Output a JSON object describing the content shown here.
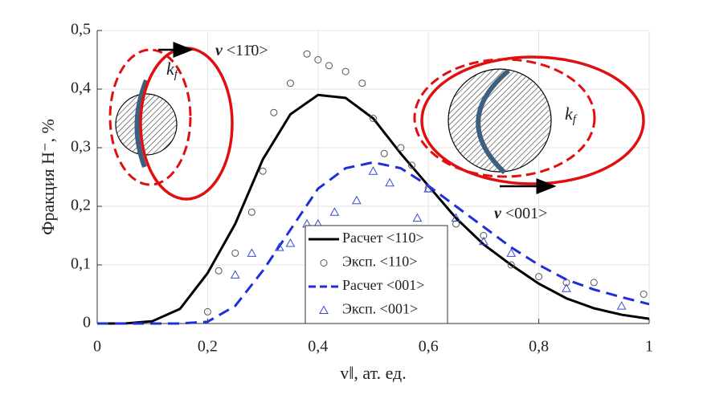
{
  "chart_data": {
    "type": "line",
    "xlabel": "v‖, ат. ед.",
    "ylabel": "Фракция H⁻, %",
    "xlim": [
      0,
      1
    ],
    "ylim": [
      0,
      0.5
    ],
    "xticks": [
      0,
      {
        "value": 0.2,
        "label": "0,2"
      },
      {
        "value": 0.4,
        "label": "0,4"
      },
      {
        "value": 0.6,
        "label": "0,6"
      },
      {
        "value": 0.8,
        "label": "0,8"
      },
      1
    ],
    "yticks": [
      0,
      {
        "value": 0.1,
        "label": "0,1"
      },
      {
        "value": 0.2,
        "label": "0,2"
      },
      {
        "value": 0.3,
        "label": "0,3"
      },
      {
        "value": 0.4,
        "label": "0,4"
      },
      {
        "value": 0.5,
        "label": "0,5"
      }
    ],
    "grid": true,
    "legend": "bottom center",
    "series": [
      {
        "name": "Расчет <110>",
        "color": "#000000",
        "line_style": "solid",
        "marker": "none",
        "x": [
          0,
          0.05,
          0.1,
          0.15,
          0.2,
          0.25,
          0.3,
          0.35,
          0.4,
          0.45,
          0.5,
          0.55,
          0.6,
          0.65,
          0.7,
          0.75,
          0.8,
          0.85,
          0.9,
          0.95,
          1
        ],
        "values": [
          0,
          0,
          0.004,
          0.025,
          0.086,
          0.17,
          0.28,
          0.357,
          0.39,
          0.385,
          0.35,
          0.29,
          0.235,
          0.18,
          0.135,
          0.1,
          0.068,
          0.043,
          0.026,
          0.015,
          0.008
        ]
      },
      {
        "name": "Эксп. <110>",
        "color": "#555555",
        "line_style": "none",
        "marker": "circle",
        "x": [
          0.2,
          0.22,
          0.25,
          0.28,
          0.3,
          0.32,
          0.35,
          0.38,
          0.4,
          0.42,
          0.45,
          0.48,
          0.5,
          0.52,
          0.55,
          0.57,
          0.6,
          0.65,
          0.7,
          0.75,
          0.8,
          0.85,
          0.9,
          0.99
        ],
        "values": [
          0.02,
          0.09,
          0.12,
          0.19,
          0.26,
          0.36,
          0.41,
          0.46,
          0.45,
          0.44,
          0.43,
          0.41,
          0.35,
          0.29,
          0.3,
          0.27,
          0.23,
          0.17,
          0.15,
          0.1,
          0.08,
          0.07,
          0.07,
          0.05
        ]
      },
      {
        "name": "Расчет <001>",
        "color": "#1f2fd6",
        "line_style": "dashed",
        "marker": "none",
        "x": [
          0,
          0.05,
          0.1,
          0.15,
          0.2,
          0.25,
          0.3,
          0.35,
          0.4,
          0.45,
          0.5,
          0.55,
          0.6,
          0.65,
          0.7,
          0.75,
          0.8,
          0.85,
          0.9,
          0.95,
          1
        ],
        "values": [
          0,
          0,
          0,
          0,
          0.003,
          0.03,
          0.09,
          0.16,
          0.23,
          0.265,
          0.275,
          0.265,
          0.235,
          0.2,
          0.165,
          0.13,
          0.1,
          0.075,
          0.058,
          0.045,
          0.033
        ]
      },
      {
        "name": "Эксп. <001>",
        "color": "#3a4ad0",
        "line_style": "none",
        "marker": "triangle",
        "x": [
          0.25,
          0.28,
          0.33,
          0.35,
          0.38,
          0.4,
          0.43,
          0.47,
          0.5,
          0.53,
          0.58,
          0.6,
          0.65,
          0.7,
          0.75,
          0.85,
          0.95
        ],
        "values": [
          0.083,
          0.12,
          0.13,
          0.137,
          0.17,
          0.17,
          0.19,
          0.21,
          0.26,
          0.24,
          0.18,
          0.23,
          0.18,
          0.14,
          0.12,
          0.06,
          0.03
        ]
      }
    ],
    "annotations": [
      {
        "symbol": "v",
        "text": "<11̄0>"
      },
      {
        "symbol": "v",
        "text": "<001>"
      },
      {
        "symbol": "k",
        "sub": "f"
      },
      {
        "symbol": "k",
        "sub": "f"
      }
    ]
  }
}
